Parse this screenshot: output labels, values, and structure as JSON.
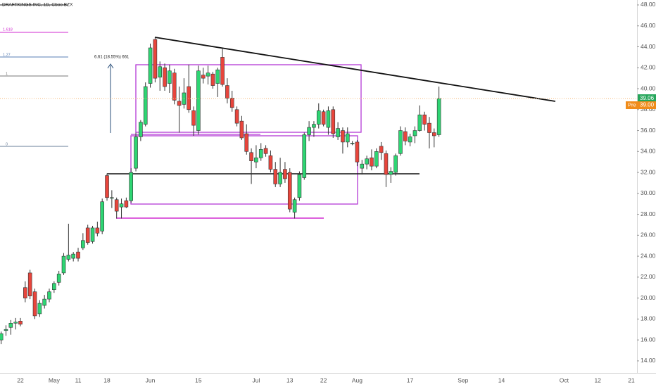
{
  "chart_data": {
    "type": "candlestick",
    "title": "DRAFTKINGS INC, 1D, Cboe BZX",
    "categories": [
      null,
      null,
      null,
      null,
      "22",
      null,
      null,
      null,
      null,
      null,
      null,
      "May",
      null,
      null,
      null,
      null,
      "11",
      null,
      null,
      null,
      null,
      null,
      "18",
      null,
      null,
      null,
      null,
      null,
      null,
      null,
      null,
      "Jun",
      null,
      null,
      null,
      null,
      null,
      null,
      null,
      null,
      null,
      "15",
      null,
      null,
      null,
      null,
      null,
      null,
      null,
      null,
      null,
      null,
      null,
      "Jul",
      null,
      null,
      null,
      null,
      null,
      null,
      "13",
      null,
      null,
      null,
      null,
      null,
      null,
      "22",
      null,
      null,
      null,
      null,
      null,
      null,
      "Aug",
      null,
      null,
      null,
      null,
      null,
      null,
      null,
      null,
      null,
      null,
      "17",
      null,
      null,
      null,
      null,
      null,
      null,
      null,
      null,
      null,
      null,
      "Sep",
      null,
      null,
      null,
      null,
      null,
      null,
      null,
      "14",
      null,
      null,
      null,
      null,
      null,
      null,
      null,
      null,
      null,
      null,
      null,
      null,
      "Oct",
      null,
      null,
      null,
      null,
      null,
      null,
      "12",
      null,
      null,
      null,
      null,
      null,
      null,
      "21",
      null
    ],
    "open": [
      16.0,
      16.9,
      17.2,
      17.6,
      17.8,
      21.0,
      22.4,
      20.6,
      18.5,
      19.3,
      19.9,
      20.8,
      21.5,
      22.4,
      23.7,
      23.8,
      24.4,
      24.8,
      26.7,
      25.4,
      26.7,
      26.4,
      31.7,
      29.6,
      29.4,
      28.7,
      29.3,
      29.3,
      32.4,
      35.4,
      36.6,
      40.5,
      44.7,
      41.1,
      42.0,
      40.5,
      41.5,
      38.8,
      38.5,
      40.2,
      37.9,
      36.0,
      41.3,
      41.2,
      41.4,
      40.5,
      43.0,
      40.3,
      39.1,
      38.0,
      36.9,
      35.7,
      33.9,
      33.0,
      33.4,
      34.3,
      33.6,
      32.3,
      30.9,
      32.3,
      32.0,
      28.2,
      29.6,
      31.5,
      35.6,
      36.3,
      36.6,
      37.8,
      36.3,
      38.0,
      35.4,
      36.0,
      34.9,
      34.8,
      34.9,
      32.4,
      32.8,
      33.4,
      32.6,
      34.5,
      33.8,
      31.8,
      32.0,
      33.8,
      35.9,
      34.9,
      35.5,
      36.0,
      37.5,
      36.7,
      35.8,
      35.6,
      null,
      null,
      null,
      null,
      null,
      null,
      null,
      null,
      null,
      null,
      null,
      null,
      null,
      null,
      null,
      null,
      null,
      null,
      null,
      null,
      null,
      null,
      null,
      null,
      null,
      null,
      null,
      null,
      null,
      null,
      null,
      null,
      null,
      null,
      null,
      null,
      null,
      null,
      null,
      null,
      null
    ],
    "high": [
      16.8,
      17.4,
      17.9,
      18.1,
      18.1,
      21.6,
      22.7,
      20.9,
      19.8,
      20.3,
      20.9,
      21.6,
      22.6,
      24.3,
      27.1,
      24.4,
      24.8,
      26.2,
      27.0,
      26.9,
      27.3,
      29.5,
      31.9,
      30.3,
      29.6,
      29.5,
      29.6,
      32.4,
      35.8,
      37.0,
      40.6,
      44.3,
      44.9,
      42.6,
      42.4,
      42.3,
      41.9,
      40.2,
      41.0,
      42.3,
      38.3,
      42.2,
      42.0,
      42.2,
      41.6,
      42.0,
      43.8,
      41.0,
      39.8,
      38.3,
      37.4,
      36.6,
      34.3,
      34.6,
      34.8,
      34.6,
      34.1,
      33.0,
      33.4,
      33.0,
      32.4,
      29.6,
      32.1,
      35.8,
      36.9,
      36.9,
      38.6,
      38.0,
      38.3,
      38.3,
      36.8,
      36.3,
      36.3,
      35.0,
      35.1,
      33.2,
      33.6,
      34.2,
      34.3,
      34.9,
      34.1,
      32.5,
      33.8,
      36.4,
      36.3,
      35.7,
      36.4,
      38.4,
      37.8,
      37.3,
      36.2,
      40.2,
      null,
      null,
      null,
      null,
      null,
      null,
      null,
      null,
      null,
      null,
      null,
      null,
      null,
      null,
      null,
      null,
      null,
      null,
      null,
      null,
      null,
      null,
      null,
      null,
      null,
      null,
      null,
      null,
      null,
      null,
      null,
      null,
      null,
      null,
      null,
      null,
      null,
      null,
      null,
      null,
      null
    ],
    "low": [
      15.6,
      16.4,
      16.5,
      17.0,
      17.3,
      19.6,
      19.9,
      18.0,
      18.2,
      19.0,
      19.6,
      20.5,
      21.2,
      22.2,
      23.5,
      23.5,
      23.5,
      24.6,
      25.1,
      25.2,
      25.9,
      26.1,
      29.3,
      28.6,
      27.6,
      27.6,
      28.6,
      29.1,
      32.1,
      35.0,
      36.4,
      40.1,
      40.6,
      39.8,
      39.8,
      39.6,
      38.5,
      35.8,
      38.1,
      37.7,
      35.5,
      35.6,
      40.5,
      40.4,
      40.0,
      39.2,
      40.2,
      38.6,
      37.8,
      36.4,
      35.1,
      33.7,
      30.9,
      32.4,
      33.1,
      33.5,
      32.0,
      30.6,
      30.6,
      31.0,
      28.2,
      27.6,
      29.3,
      31.3,
      35.0,
      35.4,
      36.2,
      36.4,
      35.6,
      35.3,
      35.1,
      33.8,
      34.4,
      34.6,
      32.6,
      31.8,
      32.3,
      32.2,
      32.4,
      33.2,
      30.6,
      31.0,
      31.7,
      33.6,
      34.6,
      34.5,
      34.8,
      35.9,
      36.0,
      34.3,
      34.4,
      35.4,
      null,
      null,
      null,
      null,
      null,
      null,
      null,
      null,
      null,
      null,
      null,
      null,
      null,
      null,
      null,
      null,
      null,
      null,
      null,
      null,
      null,
      null,
      null,
      null,
      null,
      null,
      null,
      null,
      null,
      null,
      null,
      null,
      null,
      null,
      null,
      null,
      null,
      null,
      null,
      null,
      null
    ],
    "close": [
      16.6,
      17.0,
      17.6,
      17.7,
      17.5,
      20.0,
      20.2,
      18.3,
      19.5,
      19.9,
      20.6,
      21.4,
      22.3,
      24.0,
      24.1,
      24.2,
      23.8,
      25.5,
      25.3,
      26.7,
      26.2,
      29.2,
      29.6,
      29.6,
      28.3,
      29.0,
      28.7,
      32.0,
      35.4,
      36.8,
      40.2,
      43.9,
      41.0,
      42.1,
      40.2,
      41.7,
      38.9,
      38.4,
      39.6,
      38.0,
      36.5,
      41.7,
      41.0,
      41.5,
      40.3,
      41.8,
      40.4,
      39.1,
      38.2,
      36.7,
      35.3,
      34.0,
      33.1,
      33.4,
      34.2,
      33.8,
      32.3,
      30.9,
      32.0,
      31.4,
      28.5,
      29.4,
      31.8,
      35.6,
      36.3,
      36.6,
      37.9,
      36.6,
      37.9,
      35.7,
      36.2,
      34.9,
      35.7,
      34.8,
      33.0,
      32.8,
      33.3,
      32.6,
      34.0,
      33.9,
      31.8,
      32.1,
      33.6,
      36.0,
      35.0,
      35.4,
      36.0,
      37.5,
      36.6,
      35.8,
      35.5,
      39.06,
      null,
      null,
      null,
      null,
      null,
      null,
      null,
      null,
      null,
      null,
      null,
      null,
      null,
      null,
      null,
      null,
      null,
      null,
      null,
      null,
      null,
      null,
      null,
      null,
      null,
      null,
      null,
      null,
      null,
      null,
      null,
      null,
      null,
      null,
      null,
      null,
      null,
      null,
      null,
      null,
      null
    ],
    "up_color": "#2ed573",
    "down_color": "#e8453c",
    "ylim": [
      12.85,
      48.47
    ],
    "yticks": [
      {
        "value": 14,
        "label": "14.00"
      },
      {
        "value": 16,
        "label": "16.00"
      },
      {
        "value": 18,
        "label": "18.00"
      },
      {
        "value": 20,
        "label": "20.00"
      },
      {
        "value": 22,
        "label": "22.00"
      },
      {
        "value": 24,
        "label": "24.00"
      },
      {
        "value": 26,
        "label": "26.00"
      },
      {
        "value": 28,
        "label": "28.00"
      },
      {
        "value": 30,
        "label": "30.00"
      },
      {
        "value": 32,
        "label": "32.00"
      },
      {
        "value": 34,
        "label": "34.00"
      },
      {
        "value": 36,
        "label": "36.00"
      },
      {
        "value": 38,
        "label": "38.00"
      },
      {
        "value": 40,
        "label": "40.00"
      },
      {
        "value": 42,
        "label": "42.00"
      },
      {
        "value": 44,
        "label": "44.00"
      },
      {
        "value": 46,
        "label": "46.00"
      },
      {
        "value": 48,
        "label": "48.00"
      }
    ],
    "last_price_label": "39.06",
    "pre_market_tag": "Pre",
    "pre_market_price": "39.00",
    "fib_levels": [
      "1.618",
      "1.27",
      "1",
      "0"
    ],
    "measure_label": "6.61 (18.55%) 661"
  }
}
